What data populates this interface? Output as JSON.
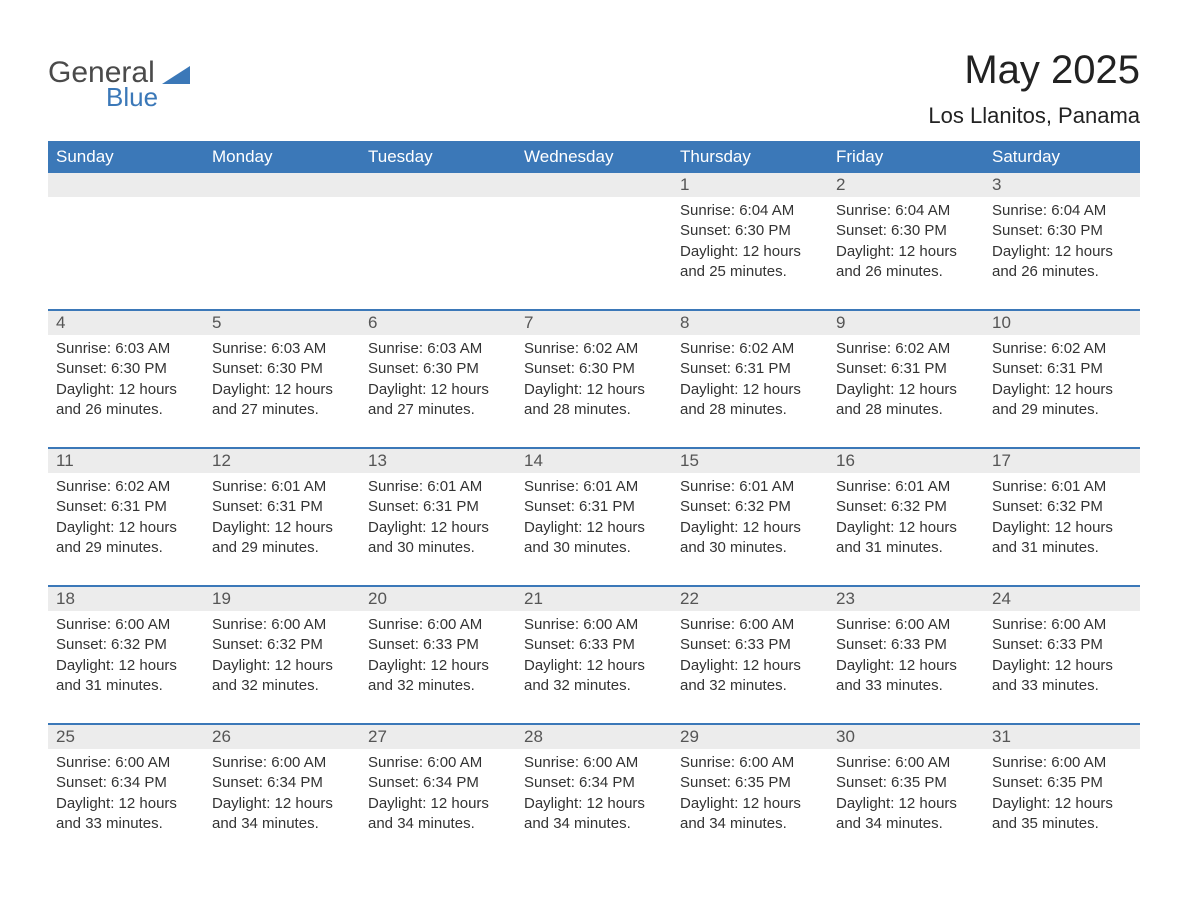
{
  "brand": {
    "word1": "General",
    "word2": "Blue",
    "icon_color": "#3b78b8",
    "text_color_1": "#4a4a4a",
    "text_color_2": "#3b78b8"
  },
  "title": "May 2025",
  "subtitle": "Los Llanitos, Panama",
  "colors": {
    "header_bg": "#3b78b8",
    "header_text": "#ffffff",
    "daybar_bg": "#ececec",
    "body_text": "#333333",
    "page_bg": "#ffffff",
    "week_border": "#3b78b8"
  },
  "day_labels": [
    "Sunday",
    "Monday",
    "Tuesday",
    "Wednesday",
    "Thursday",
    "Friday",
    "Saturday"
  ],
  "weeks": [
    [
      {
        "day": "",
        "sunrise": "",
        "sunset": "",
        "daylight": ""
      },
      {
        "day": "",
        "sunrise": "",
        "sunset": "",
        "daylight": ""
      },
      {
        "day": "",
        "sunrise": "",
        "sunset": "",
        "daylight": ""
      },
      {
        "day": "",
        "sunrise": "",
        "sunset": "",
        "daylight": ""
      },
      {
        "day": "1",
        "sunrise": "Sunrise: 6:04 AM",
        "sunset": "Sunset: 6:30 PM",
        "daylight": "Daylight: 12 hours and 25 minutes."
      },
      {
        "day": "2",
        "sunrise": "Sunrise: 6:04 AM",
        "sunset": "Sunset: 6:30 PM",
        "daylight": "Daylight: 12 hours and 26 minutes."
      },
      {
        "day": "3",
        "sunrise": "Sunrise: 6:04 AM",
        "sunset": "Sunset: 6:30 PM",
        "daylight": "Daylight: 12 hours and 26 minutes."
      }
    ],
    [
      {
        "day": "4",
        "sunrise": "Sunrise: 6:03 AM",
        "sunset": "Sunset: 6:30 PM",
        "daylight": "Daylight: 12 hours and 26 minutes."
      },
      {
        "day": "5",
        "sunrise": "Sunrise: 6:03 AM",
        "sunset": "Sunset: 6:30 PM",
        "daylight": "Daylight: 12 hours and 27 minutes."
      },
      {
        "day": "6",
        "sunrise": "Sunrise: 6:03 AM",
        "sunset": "Sunset: 6:30 PM",
        "daylight": "Daylight: 12 hours and 27 minutes."
      },
      {
        "day": "7",
        "sunrise": "Sunrise: 6:02 AM",
        "sunset": "Sunset: 6:30 PM",
        "daylight": "Daylight: 12 hours and 28 minutes."
      },
      {
        "day": "8",
        "sunrise": "Sunrise: 6:02 AM",
        "sunset": "Sunset: 6:31 PM",
        "daylight": "Daylight: 12 hours and 28 minutes."
      },
      {
        "day": "9",
        "sunrise": "Sunrise: 6:02 AM",
        "sunset": "Sunset: 6:31 PM",
        "daylight": "Daylight: 12 hours and 28 minutes."
      },
      {
        "day": "10",
        "sunrise": "Sunrise: 6:02 AM",
        "sunset": "Sunset: 6:31 PM",
        "daylight": "Daylight: 12 hours and 29 minutes."
      }
    ],
    [
      {
        "day": "11",
        "sunrise": "Sunrise: 6:02 AM",
        "sunset": "Sunset: 6:31 PM",
        "daylight": "Daylight: 12 hours and 29 minutes."
      },
      {
        "day": "12",
        "sunrise": "Sunrise: 6:01 AM",
        "sunset": "Sunset: 6:31 PM",
        "daylight": "Daylight: 12 hours and 29 minutes."
      },
      {
        "day": "13",
        "sunrise": "Sunrise: 6:01 AM",
        "sunset": "Sunset: 6:31 PM",
        "daylight": "Daylight: 12 hours and 30 minutes."
      },
      {
        "day": "14",
        "sunrise": "Sunrise: 6:01 AM",
        "sunset": "Sunset: 6:31 PM",
        "daylight": "Daylight: 12 hours and 30 minutes."
      },
      {
        "day": "15",
        "sunrise": "Sunrise: 6:01 AM",
        "sunset": "Sunset: 6:32 PM",
        "daylight": "Daylight: 12 hours and 30 minutes."
      },
      {
        "day": "16",
        "sunrise": "Sunrise: 6:01 AM",
        "sunset": "Sunset: 6:32 PM",
        "daylight": "Daylight: 12 hours and 31 minutes."
      },
      {
        "day": "17",
        "sunrise": "Sunrise: 6:01 AM",
        "sunset": "Sunset: 6:32 PM",
        "daylight": "Daylight: 12 hours and 31 minutes."
      }
    ],
    [
      {
        "day": "18",
        "sunrise": "Sunrise: 6:00 AM",
        "sunset": "Sunset: 6:32 PM",
        "daylight": "Daylight: 12 hours and 31 minutes."
      },
      {
        "day": "19",
        "sunrise": "Sunrise: 6:00 AM",
        "sunset": "Sunset: 6:32 PM",
        "daylight": "Daylight: 12 hours and 32 minutes."
      },
      {
        "day": "20",
        "sunrise": "Sunrise: 6:00 AM",
        "sunset": "Sunset: 6:33 PM",
        "daylight": "Daylight: 12 hours and 32 minutes."
      },
      {
        "day": "21",
        "sunrise": "Sunrise: 6:00 AM",
        "sunset": "Sunset: 6:33 PM",
        "daylight": "Daylight: 12 hours and 32 minutes."
      },
      {
        "day": "22",
        "sunrise": "Sunrise: 6:00 AM",
        "sunset": "Sunset: 6:33 PM",
        "daylight": "Daylight: 12 hours and 32 minutes."
      },
      {
        "day": "23",
        "sunrise": "Sunrise: 6:00 AM",
        "sunset": "Sunset: 6:33 PM",
        "daylight": "Daylight: 12 hours and 33 minutes."
      },
      {
        "day": "24",
        "sunrise": "Sunrise: 6:00 AM",
        "sunset": "Sunset: 6:33 PM",
        "daylight": "Daylight: 12 hours and 33 minutes."
      }
    ],
    [
      {
        "day": "25",
        "sunrise": "Sunrise: 6:00 AM",
        "sunset": "Sunset: 6:34 PM",
        "daylight": "Daylight: 12 hours and 33 minutes."
      },
      {
        "day": "26",
        "sunrise": "Sunrise: 6:00 AM",
        "sunset": "Sunset: 6:34 PM",
        "daylight": "Daylight: 12 hours and 34 minutes."
      },
      {
        "day": "27",
        "sunrise": "Sunrise: 6:00 AM",
        "sunset": "Sunset: 6:34 PM",
        "daylight": "Daylight: 12 hours and 34 minutes."
      },
      {
        "day": "28",
        "sunrise": "Sunrise: 6:00 AM",
        "sunset": "Sunset: 6:34 PM",
        "daylight": "Daylight: 12 hours and 34 minutes."
      },
      {
        "day": "29",
        "sunrise": "Sunrise: 6:00 AM",
        "sunset": "Sunset: 6:35 PM",
        "daylight": "Daylight: 12 hours and 34 minutes."
      },
      {
        "day": "30",
        "sunrise": "Sunrise: 6:00 AM",
        "sunset": "Sunset: 6:35 PM",
        "daylight": "Daylight: 12 hours and 34 minutes."
      },
      {
        "day": "31",
        "sunrise": "Sunrise: 6:00 AM",
        "sunset": "Sunset: 6:35 PM",
        "daylight": "Daylight: 12 hours and 35 minutes."
      }
    ]
  ]
}
